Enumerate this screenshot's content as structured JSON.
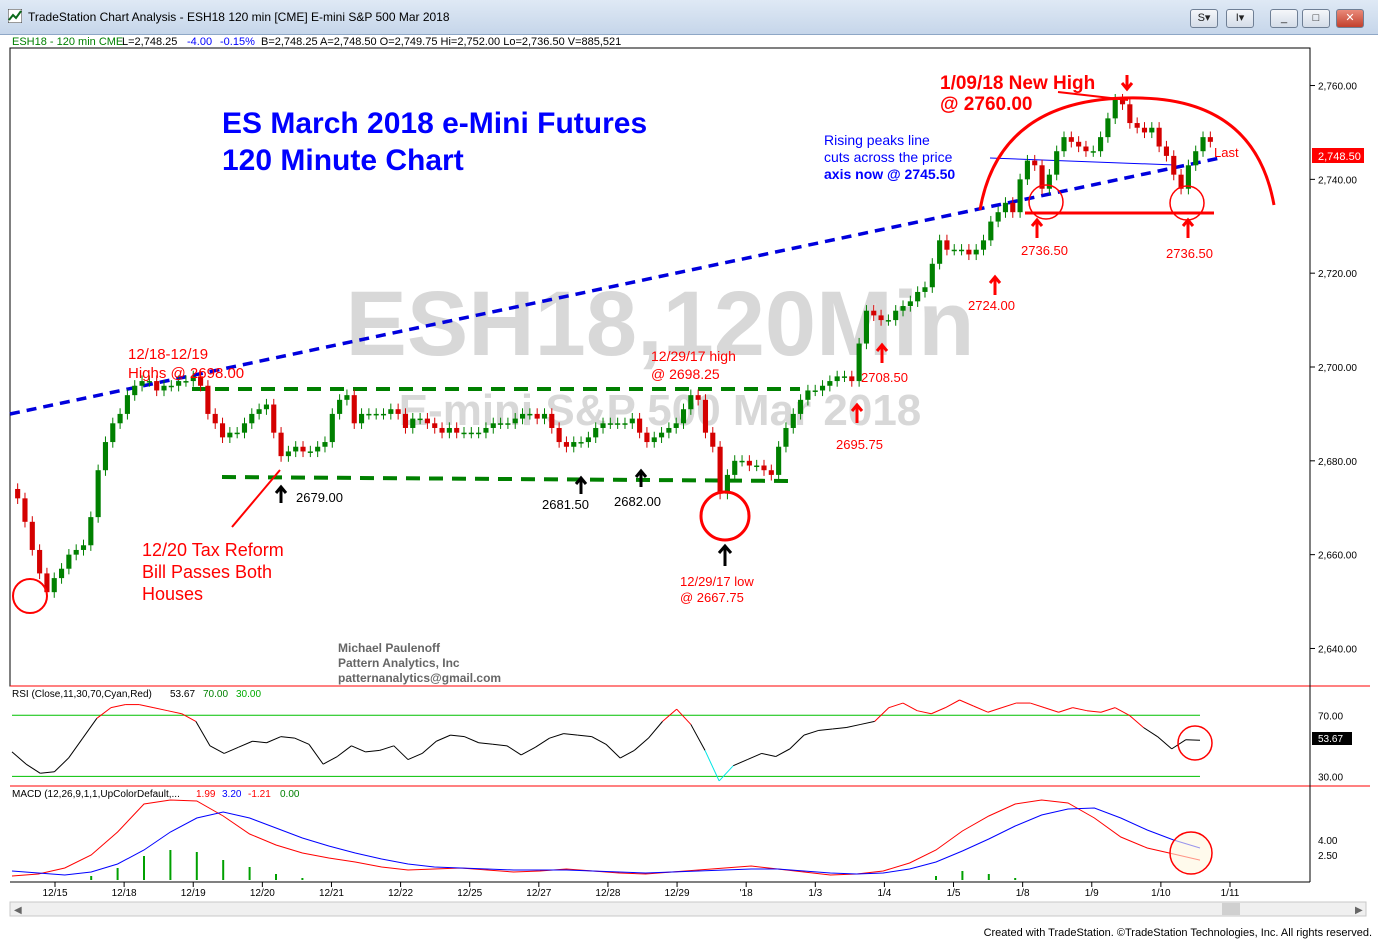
{
  "window": {
    "title": "TradeStation Chart Analysis - ESH18 120 min [CME] E-mini S&P 500 Mar 2018",
    "buttons": [
      "S",
      "I",
      "_",
      "□",
      "✕"
    ]
  },
  "header_line": {
    "symbol": "ESH18 - 120 min  CME",
    "last": "L=2,748.25",
    "change": "-4.00",
    "pct": "-0.15%",
    "quote": "B=2,748.25  A=2,748.50  O=2,749.75  Hi=2,752.00  Lo=2,736.50  V=885,521"
  },
  "footer": "Created with TradeStation. ©TradeStation Technologies, Inc. All rights reserved.",
  "colors": {
    "up": "#008000",
    "down": "#d40000",
    "trend": "#0000dd",
    "range": "#008000",
    "annotation": "#ff0000",
    "blue_text": "#0000ff",
    "watermark": "#d8d8d8"
  },
  "chart_data": [
    {
      "type": "candlestick",
      "ylim": [
        2632,
        2768
      ],
      "y_ticks": [
        "2,760.00",
        "2,740.00",
        "2,720.00",
        "2,700.00",
        "2,680.00",
        "2,660.00",
        "2,640.00"
      ],
      "x_labels": [
        "12/15",
        "12/18",
        "12/19",
        "12/20",
        "12/21",
        "12/22",
        "12/25",
        "12/27",
        "12/28",
        "12/29",
        "'18",
        "1/3",
        "1/4",
        "1/5",
        "1/8",
        "1/9",
        "1/10",
        "1/11"
      ],
      "watermark": [
        "ESH18,120Min",
        "E-mini S&P 500 Mar 2018"
      ],
      "title": [
        "ES March 2018 e-Mini Futures",
        "120 Minute Chart"
      ],
      "credits": [
        "Michael Paulenoff",
        "Pattern Analytics, Inc",
        "patternanalytics@gmail.com"
      ],
      "last_label": "2,748.50",
      "last_text": "Last",
      "closes": [
        2672,
        2667,
        2661,
        2656,
        2652,
        2655,
        2657,
        2660,
        2661,
        2662,
        2668,
        2678,
        2684,
        2688,
        2690,
        2694,
        2696,
        2697,
        2697,
        2695,
        2696,
        2696,
        2697,
        2697,
        2698,
        2696,
        2690,
        2688,
        2685,
        2686,
        2686,
        2688,
        2690,
        2691,
        2692,
        2686,
        2681,
        2682,
        2683,
        2682,
        2682,
        2683,
        2684,
        2690,
        2693,
        2694,
        2688,
        2690,
        2690,
        2690,
        2690,
        2691,
        2690,
        2687,
        2689,
        2689,
        2688,
        2687,
        2686,
        2687,
        2686,
        2686,
        2686,
        2686,
        2687,
        2688,
        2688,
        2688,
        2689,
        2690,
        2690,
        2689,
        2690,
        2687,
        2684,
        2683,
        2684,
        2684,
        2685,
        2687,
        2688,
        2688,
        2688,
        2688,
        2689,
        2686,
        2684,
        2685,
        2686,
        2687,
        2688,
        2691,
        2694,
        2693,
        2686,
        2683,
        2673,
        2677,
        2680,
        2680,
        2679,
        2679,
        2678,
        2677,
        2683,
        2687,
        2690,
        2693,
        2695,
        2695,
        2696,
        2697,
        2698,
        2698,
        2697,
        2705,
        2712,
        2711,
        2710,
        2710,
        2712,
        2713,
        2714,
        2716,
        2717,
        2722,
        2727,
        2725,
        2725,
        2725,
        2724,
        2725,
        2727,
        2731,
        2733,
        2735,
        2733,
        2740,
        2744,
        2743,
        2738,
        2741,
        2746,
        2749,
        2748,
        2747,
        2746,
        2746,
        2749,
        2753,
        2757,
        2756,
        2752,
        2751,
        2750,
        2751,
        2747,
        2745,
        2741,
        2738,
        2743,
        2746,
        2749,
        2748
      ],
      "annotations": [
        {
          "lines": [
            "1/09/18 New High",
            "@ 2760.00"
          ],
          "color": "#ff0000"
        },
        {
          "lines": [
            "Rising peaks line",
            "cuts across the price",
            "axis now @ 2745.50"
          ],
          "color": "#0000ff"
        },
        {
          "lines": [
            "12/18-12/19",
            "Highs @ 2698.00"
          ],
          "color": "#ff0000"
        },
        {
          "lines": [
            "12/29/17 high",
            "@ 2698.25"
          ],
          "color": "#ff0000"
        },
        {
          "lines": [
            "12/20 Tax Reform",
            "Bill Passes Both",
            "Houses"
          ],
          "color": "#ff0000"
        },
        {
          "lines": [
            "12/29/17 low",
            "@ 2667.75"
          ],
          "color": "#ff0000"
        },
        {
          "lines": [
            "2679.00"
          ],
          "color": "#000000"
        },
        {
          "lines": [
            "2681.50"
          ],
          "color": "#000000"
        },
        {
          "lines": [
            "2682.00"
          ],
          "color": "#000000"
        },
        {
          "lines": [
            "2695.75"
          ],
          "color": "#ff0000"
        },
        {
          "lines": [
            "2708.50"
          ],
          "color": "#ff0000"
        },
        {
          "lines": [
            "2724.00"
          ],
          "color": "#ff0000"
        },
        {
          "lines": [
            "2736.50"
          ],
          "color": "#ff0000"
        },
        {
          "lines": [
            "2736.50"
          ],
          "color": "#ff0000"
        }
      ]
    },
    {
      "type": "line",
      "name": "RSI (Close,11,30,70,Cyan,Red)",
      "label_values": [
        "53.67",
        "70.00",
        "30.00"
      ],
      "ylim": [
        25,
        80
      ],
      "y_ticks": [
        "70.00",
        "30.00"
      ],
      "levels": [
        70,
        30
      ],
      "last_label": "53.67",
      "values": [
        46,
        38,
        32,
        33,
        42,
        55,
        68,
        75,
        77,
        77,
        75,
        73,
        71,
        66,
        50,
        45,
        49,
        53,
        52,
        56,
        55,
        51,
        38,
        43,
        50,
        46,
        47,
        50,
        41,
        45,
        53,
        57,
        56,
        52,
        51,
        50,
        44,
        49,
        55,
        58,
        57,
        56,
        51,
        42,
        47,
        55,
        66,
        74,
        64,
        47,
        27,
        37,
        41,
        45,
        43,
        48,
        57,
        60,
        61,
        62,
        64,
        66,
        75,
        78,
        73,
        71,
        75,
        80,
        76,
        72,
        75,
        78,
        78,
        75,
        72,
        75,
        73,
        72,
        75,
        70,
        62,
        56,
        48,
        54,
        53.67
      ]
    },
    {
      "type": "line",
      "name": "MACD (12,26,9,1,1,UpColorDefault,...",
      "label_values": [
        "1.99",
        "3.20",
        "-1.21",
        "0.00"
      ],
      "ylim": [
        0,
        8
      ],
      "y_ticks": [
        "4.00",
        "2.50"
      ],
      "series": [
        {
          "name": "1.99",
          "values": [
            0.4,
            0.6,
            1.2,
            2.5,
            4.8,
            7.6,
            8.4,
            7.9,
            6.4,
            4.6,
            3.5,
            2.7,
            2.2,
            1.8,
            1.3,
            1.0,
            1.1,
            1.2,
            1.0,
            0.8,
            0.9,
            1.1,
            0.9,
            0.7,
            0.6,
            0.8,
            1.0,
            1.2,
            1.4,
            1.1,
            0.8,
            0.5,
            0.6,
            0.9,
            1.7,
            3.0,
            4.9,
            6.4,
            7.6,
            8.3,
            7.7,
            6.2,
            4.3,
            3.2,
            2.6,
            1.99
          ]
        },
        {
          "name": "3.20",
          "values": [
            0.9,
            0.7,
            0.5,
            0.8,
            1.6,
            3.0,
            4.8,
            6.2,
            6.8,
            6.2,
            5.2,
            4.2,
            3.4,
            2.7,
            2.1,
            1.6,
            1.3,
            1.2,
            1.1,
            1.0,
            1.0,
            1.0,
            0.9,
            0.8,
            0.7,
            0.8,
            0.9,
            1.0,
            1.1,
            1.1,
            0.9,
            0.7,
            0.6,
            0.7,
            1.1,
            1.8,
            2.9,
            4.1,
            5.4,
            6.5,
            7.1,
            7.2,
            6.2,
            5.0,
            4.0,
            3.2
          ]
        }
      ],
      "histogram": [
        0,
        0,
        0,
        0.4,
        1.2,
        2.4,
        3.0,
        2.8,
        2.0,
        1.3,
        0.6,
        0.2,
        0,
        0,
        0,
        0,
        0,
        0,
        0,
        0,
        0,
        0,
        0,
        0,
        0,
        0,
        0,
        0,
        0,
        0,
        0,
        0,
        0,
        0,
        0,
        0.4,
        0.9,
        0.6,
        0.2,
        0,
        0,
        0,
        0,
        0,
        0,
        0
      ]
    }
  ]
}
